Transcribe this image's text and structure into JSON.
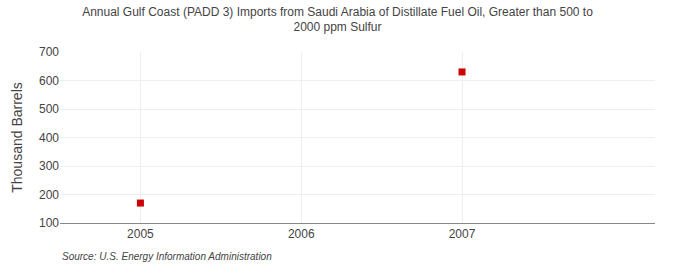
{
  "chart_data": {
    "type": "scatter",
    "title": "Annual Gulf Coast (PADD 3) Imports from Saudi Arabia of Distillate Fuel Oil, Greater than 500 to\n2000 ppm Sulfur",
    "ylabel": "Thousand Barrels",
    "annotations": [
      "Source: U.S. Energy Information Administration"
    ],
    "x": [
      2005,
      2007
    ],
    "values": [
      170,
      630
    ],
    "color": "#cc0000",
    "marker": "square",
    "xlim": [
      2004.5,
      2008.2
    ],
    "xticks": [
      2005,
      2006,
      2007
    ],
    "ylim": [
      100,
      700
    ],
    "yticks": [
      100,
      200,
      300,
      400,
      500,
      600,
      700
    ],
    "grid": true
  }
}
